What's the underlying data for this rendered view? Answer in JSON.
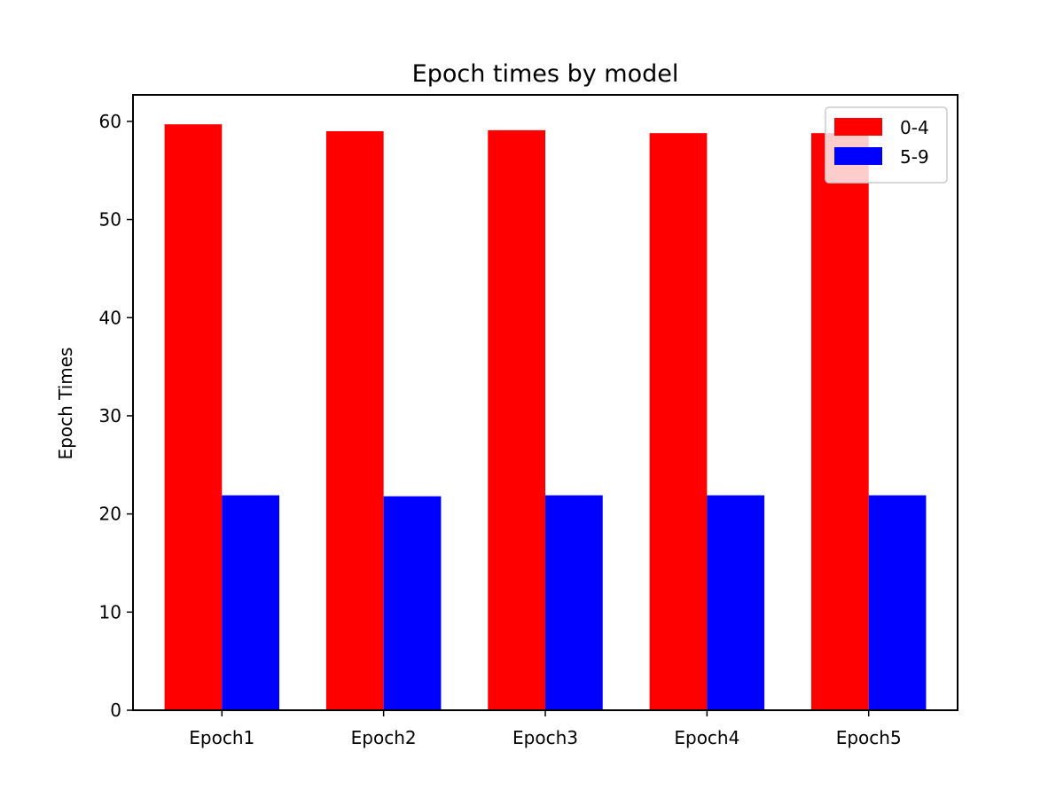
{
  "chart_data": {
    "type": "bar",
    "title": "Epoch times by model",
    "xlabel": "",
    "ylabel": "Epoch Times",
    "categories": [
      "Epoch1",
      "Epoch2",
      "Epoch3",
      "Epoch4",
      "Epoch5"
    ],
    "series": [
      {
        "name": "0-4",
        "color": "#ff0000",
        "values": [
          59.7,
          59.0,
          59.1,
          58.8,
          58.8
        ]
      },
      {
        "name": "5-9",
        "color": "#0000ff",
        "values": [
          21.9,
          21.8,
          21.9,
          21.9,
          21.9
        ]
      }
    ],
    "ylim": [
      0,
      62.7
    ],
    "yticks": [
      0,
      10,
      20,
      30,
      40,
      50,
      60
    ],
    "grid": false,
    "legend_position": "top-right"
  }
}
